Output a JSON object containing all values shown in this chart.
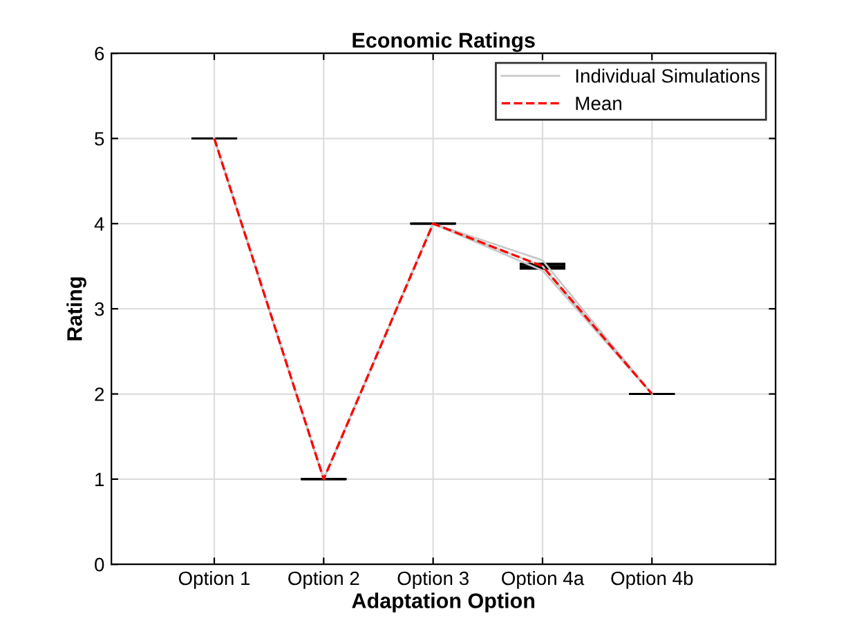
{
  "chart_data": {
    "type": "line",
    "title": "Economic Ratings",
    "xlabel": "Adaptation Option",
    "ylabel": "Rating",
    "categories": [
      "Option 1",
      "Option 2",
      "Option 3",
      "Option 4a",
      "Option 4b"
    ],
    "series": [
      {
        "name": "Individual Simulations",
        "color": "#c8c8c8",
        "line_style": "solid",
        "values": [
          5,
          1,
          4,
          3.45,
          2
        ]
      },
      {
        "color": "#c8c8c8",
        "line_style": "solid",
        "values": [
          5,
          1,
          4,
          3.5,
          2
        ]
      },
      {
        "color": "#c8c8c8",
        "line_style": "solid",
        "values": [
          5,
          1,
          4,
          3.57,
          2
        ]
      },
      {
        "type": "box",
        "color": "#000000",
        "boxes": [
          {
            "low": 5,
            "q1": 5,
            "median": 5,
            "q3": 5,
            "high": 5
          },
          {
            "low": 1,
            "q1": 1,
            "median": 1,
            "q3": 1,
            "high": 1
          },
          {
            "low": 4,
            "q1": 4,
            "median": 4,
            "q3": 4,
            "high": 4
          },
          {
            "low": 3.47,
            "q1": 3.48,
            "median": 3.5,
            "q3": 3.52,
            "high": 3.53
          },
          {
            "low": 2,
            "q1": 2,
            "median": 2,
            "q3": 2,
            "high": 2
          }
        ]
      },
      {
        "name": "Mean",
        "color": "#ff0000",
        "line_style": "dashed",
        "values": [
          5,
          1,
          4,
          3.5,
          2
        ]
      }
    ],
    "ylim": [
      0,
      6
    ],
    "yticks": [
      0,
      1,
      2,
      3,
      4,
      5,
      6
    ],
    "grid": true,
    "legend": "top right",
    "marker": "none"
  }
}
